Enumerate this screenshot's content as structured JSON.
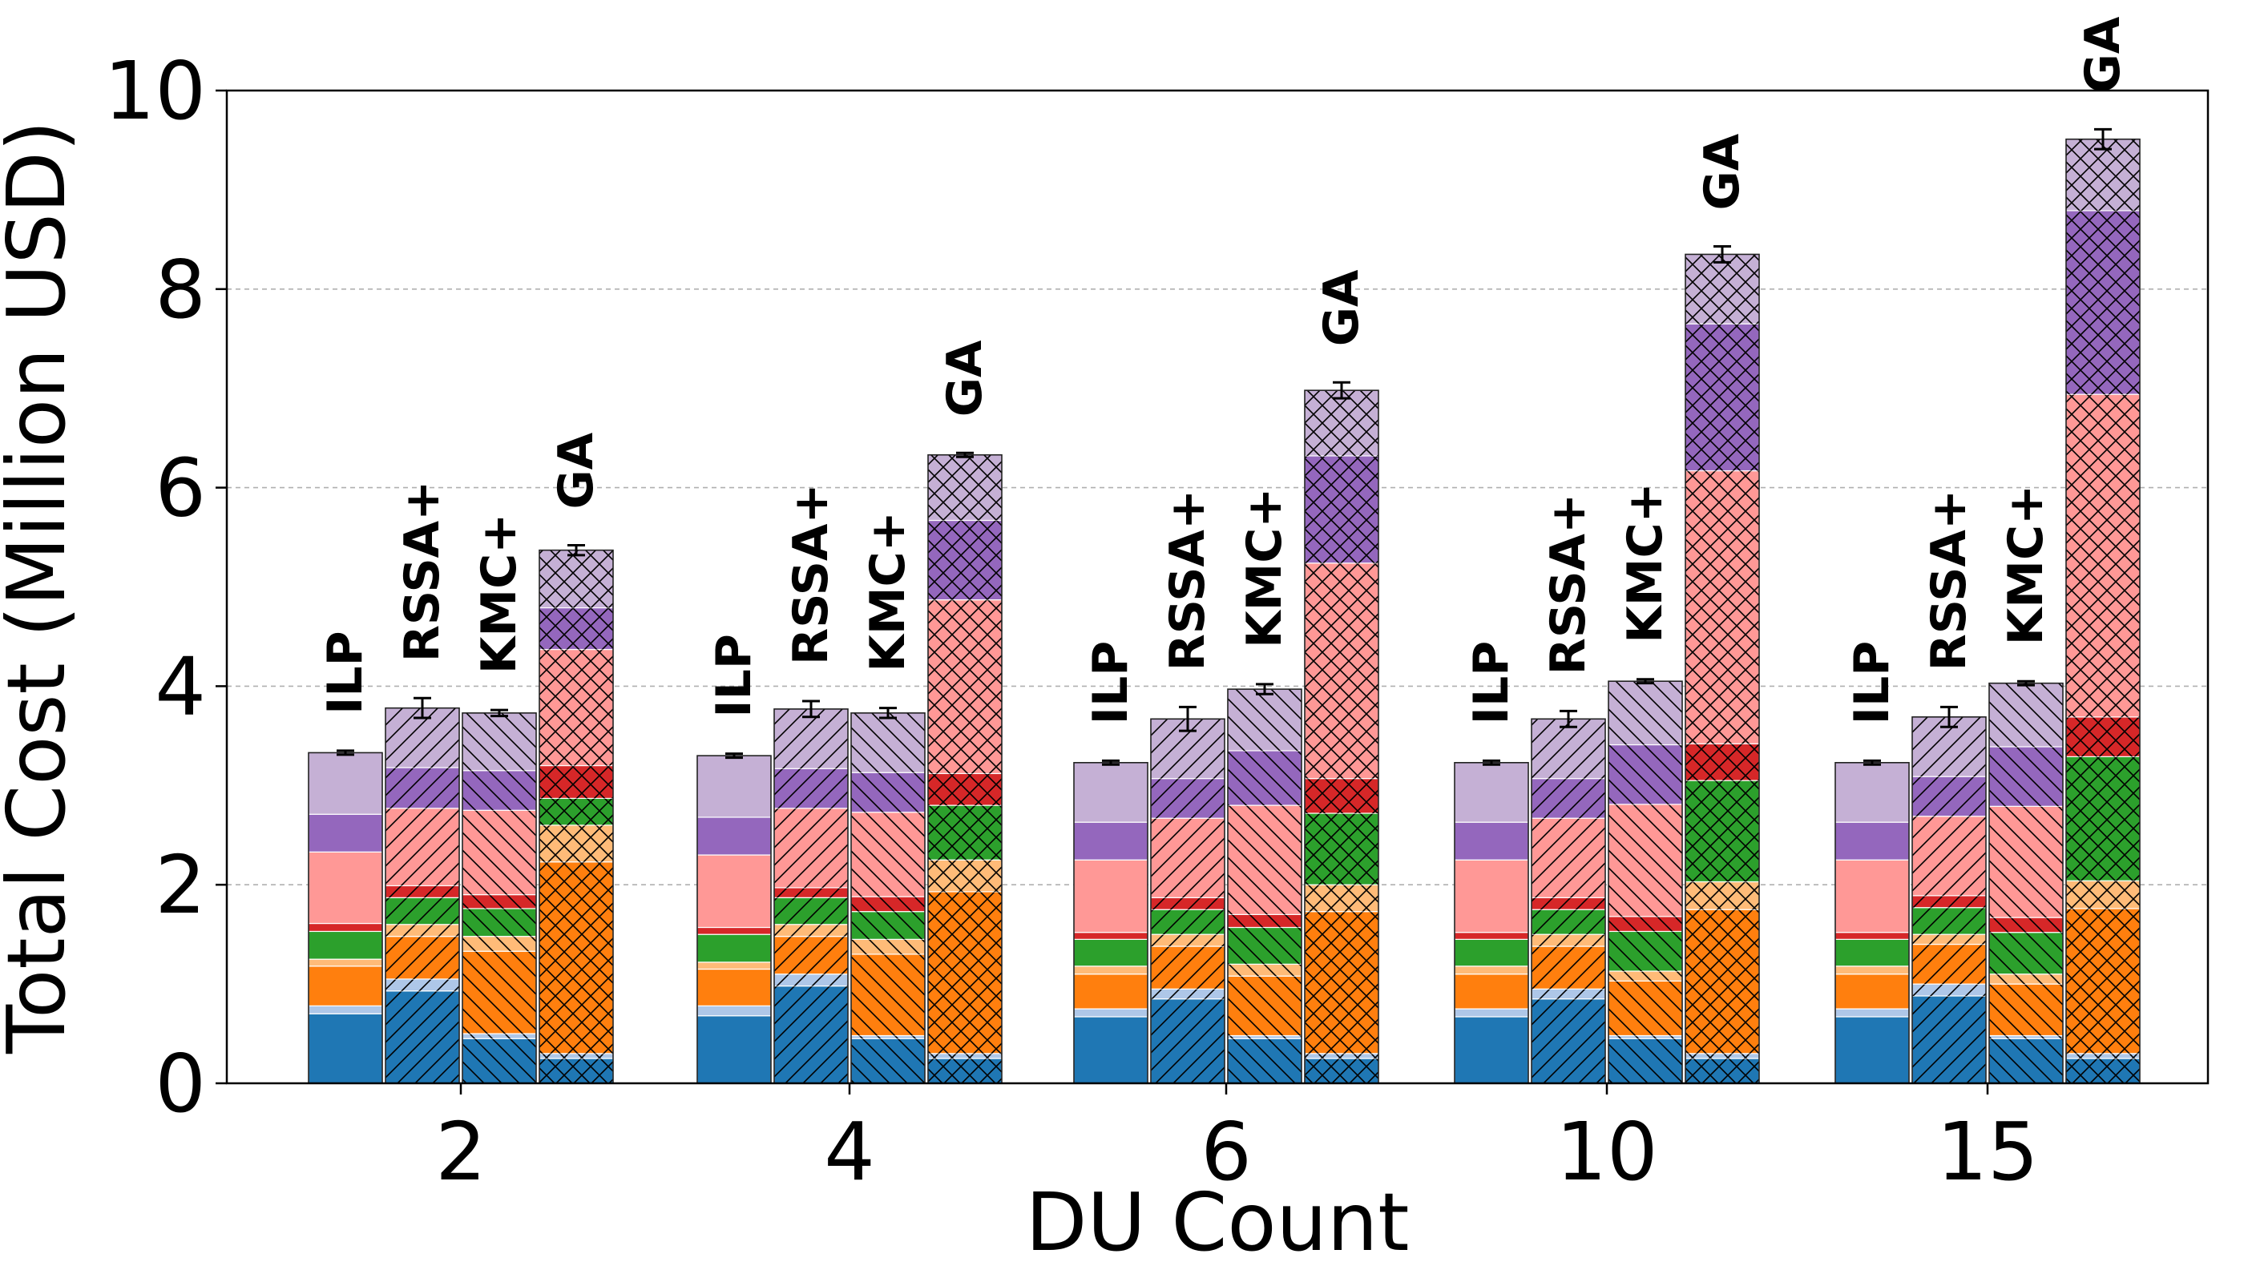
{
  "chart_data": {
    "type": "bar",
    "subtype": "grouped-stacked",
    "title": "",
    "xlabel": "DU Count",
    "ylabel": "Total Cost (Million USD)",
    "ylim": [
      0,
      10
    ],
    "yticks": [
      0,
      2,
      4,
      6,
      8,
      10
    ],
    "grid": "y-dashed",
    "categories": [
      "2",
      "4",
      "6",
      "10",
      "15"
    ],
    "methods": [
      "ILP",
      "RSSA+",
      "KMC+",
      "GA"
    ],
    "method_patterns": {
      "ILP": "none",
      "RSSA+": "diagonal",
      "KMC+": "back-diagonal",
      "GA": "cross"
    },
    "segment_colors": [
      "#1f77b4",
      "#aec7e8",
      "#ff7f0e",
      "#ffbb78",
      "#2ca02c",
      "#d62728",
      "#ff9896",
      "#9467bd",
      "#c5b0d5"
    ],
    "groups": [
      {
        "category": "2",
        "bars": [
          {
            "method": "ILP",
            "segments": [
              0.7,
              0.08,
              0.4,
              0.07,
              0.28,
              0.08,
              0.72,
              0.38,
              0.62
            ],
            "total": 3.33,
            "err": 0.02
          },
          {
            "method": "RSSA+",
            "segments": [
              0.93,
              0.12,
              0.43,
              0.12,
              0.27,
              0.12,
              0.78,
              0.41,
              0.6
            ],
            "total": 3.78,
            "err": 0.1
          },
          {
            "method": "KMC+",
            "segments": [
              0.45,
              0.05,
              0.83,
              0.15,
              0.28,
              0.14,
              0.85,
              0.4,
              0.58
            ],
            "total": 3.73,
            "err": 0.03
          },
          {
            "method": "GA",
            "segments": [
              0.25,
              0.05,
              1.93,
              0.37,
              0.27,
              0.33,
              1.17,
              0.42,
              0.58
            ],
            "total": 5.37,
            "err": 0.05
          }
        ]
      },
      {
        "category": "4",
        "bars": [
          {
            "method": "ILP",
            "segments": [
              0.68,
              0.1,
              0.37,
              0.07,
              0.28,
              0.07,
              0.73,
              0.38,
              0.62
            ],
            "total": 3.3,
            "err": 0.02
          },
          {
            "method": "RSSA+",
            "segments": [
              0.98,
              0.12,
              0.38,
              0.12,
              0.27,
              0.1,
              0.8,
              0.4,
              0.6
            ],
            "total": 3.77,
            "err": 0.08
          },
          {
            "method": "KMC+",
            "segments": [
              0.45,
              0.03,
              0.82,
              0.15,
              0.28,
              0.15,
              0.85,
              0.4,
              0.6
            ],
            "total": 3.73,
            "err": 0.05
          },
          {
            "method": "GA",
            "segments": [
              0.25,
              0.05,
              1.63,
              0.32,
              0.55,
              0.32,
              1.75,
              0.8,
              0.66
            ],
            "total": 6.33,
            "err": 0.02
          }
        ]
      },
      {
        "category": "6",
        "bars": [
          {
            "method": "ILP",
            "segments": [
              0.67,
              0.08,
              0.35,
              0.08,
              0.27,
              0.07,
              0.73,
              0.38,
              0.6
            ],
            "total": 3.23,
            "err": 0.02
          },
          {
            "method": "RSSA+",
            "segments": [
              0.85,
              0.1,
              0.43,
              0.12,
              0.25,
              0.12,
              0.8,
              0.4,
              0.6
            ],
            "total": 3.67,
            "err": 0.12
          },
          {
            "method": "KMC+",
            "segments": [
              0.45,
              0.03,
              0.6,
              0.12,
              0.37,
              0.13,
              1.1,
              0.55,
              0.62
            ],
            "total": 3.97,
            "err": 0.05
          },
          {
            "method": "GA",
            "segments": [
              0.25,
              0.05,
              1.43,
              0.27,
              0.72,
              0.35,
              2.17,
              1.08,
              0.66
            ],
            "total": 6.98,
            "err": 0.08
          }
        ]
      },
      {
        "category": "10",
        "bars": [
          {
            "method": "ILP",
            "segments": [
              0.67,
              0.08,
              0.35,
              0.08,
              0.27,
              0.07,
              0.73,
              0.38,
              0.6
            ],
            "total": 3.23,
            "err": 0.02
          },
          {
            "method": "RSSA+",
            "segments": [
              0.85,
              0.1,
              0.43,
              0.12,
              0.25,
              0.12,
              0.8,
              0.4,
              0.6
            ],
            "total": 3.67,
            "err": 0.08
          },
          {
            "method": "KMC+",
            "segments": [
              0.45,
              0.03,
              0.55,
              0.1,
              0.4,
              0.15,
              1.13,
              0.6,
              0.64
            ],
            "total": 4.05,
            "err": 0.02
          },
          {
            "method": "GA",
            "segments": [
              0.25,
              0.05,
              1.45,
              0.28,
              1.02,
              0.37,
              2.75,
              1.48,
              0.7
            ],
            "total": 8.35,
            "err": 0.08
          }
        ]
      },
      {
        "category": "15",
        "bars": [
          {
            "method": "ILP",
            "segments": [
              0.67,
              0.08,
              0.35,
              0.08,
              0.27,
              0.07,
              0.73,
              0.38,
              0.6
            ],
            "total": 3.23,
            "err": 0.02
          },
          {
            "method": "RSSA+",
            "segments": [
              0.88,
              0.12,
              0.4,
              0.1,
              0.27,
              0.12,
              0.8,
              0.4,
              0.6
            ],
            "total": 3.69,
            "err": 0.1
          },
          {
            "method": "KMC+",
            "segments": [
              0.45,
              0.03,
              0.52,
              0.1,
              0.42,
              0.15,
              1.12,
              0.6,
              0.64
            ],
            "total": 4.03,
            "err": 0.02
          },
          {
            "method": "GA",
            "segments": [
              0.25,
              0.05,
              1.46,
              0.28,
              1.25,
              0.4,
              3.25,
              1.85,
              0.72
            ],
            "total": 9.51,
            "err": 0.1
          }
        ]
      }
    ]
  }
}
